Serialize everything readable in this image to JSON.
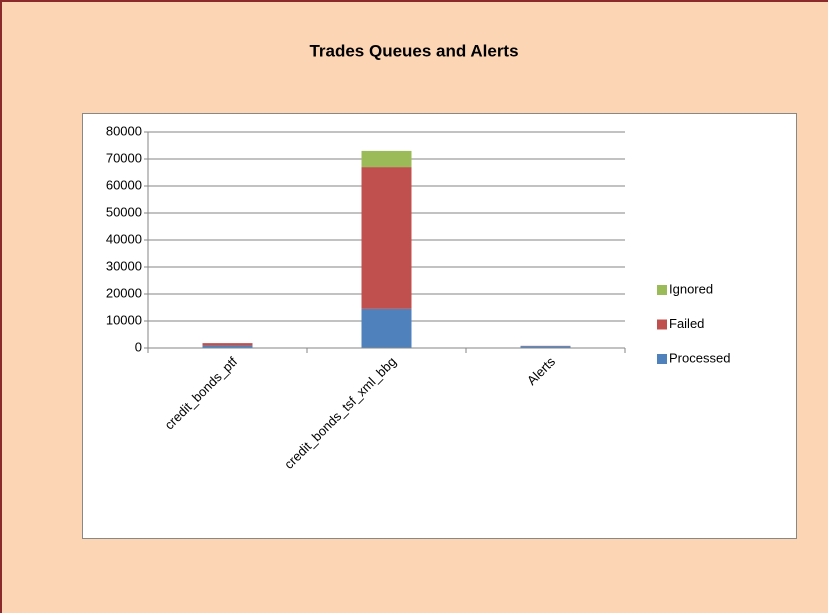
{
  "chart_data": {
    "type": "stacked_bar",
    "title": "Trades Queues and Alerts",
    "categories": [
      "credit_bonds_ptf",
      "credit_bonds_tsf_xml_bbg",
      "Alerts"
    ],
    "series": [
      {
        "name": "Processed",
        "color": "#4f81bd",
        "values": [
          900,
          14500,
          700
        ]
      },
      {
        "name": "Failed",
        "color": "#c0504d",
        "values": [
          900,
          52500,
          100
        ]
      },
      {
        "name": "Ignored",
        "color": "#9bbb59",
        "values": [
          0,
          6000,
          0
        ]
      }
    ],
    "ylim": [
      0,
      80000
    ],
    "yticks": [
      0,
      10000,
      20000,
      30000,
      40000,
      50000,
      60000,
      70000,
      80000
    ],
    "grid": true,
    "legend": "right"
  }
}
